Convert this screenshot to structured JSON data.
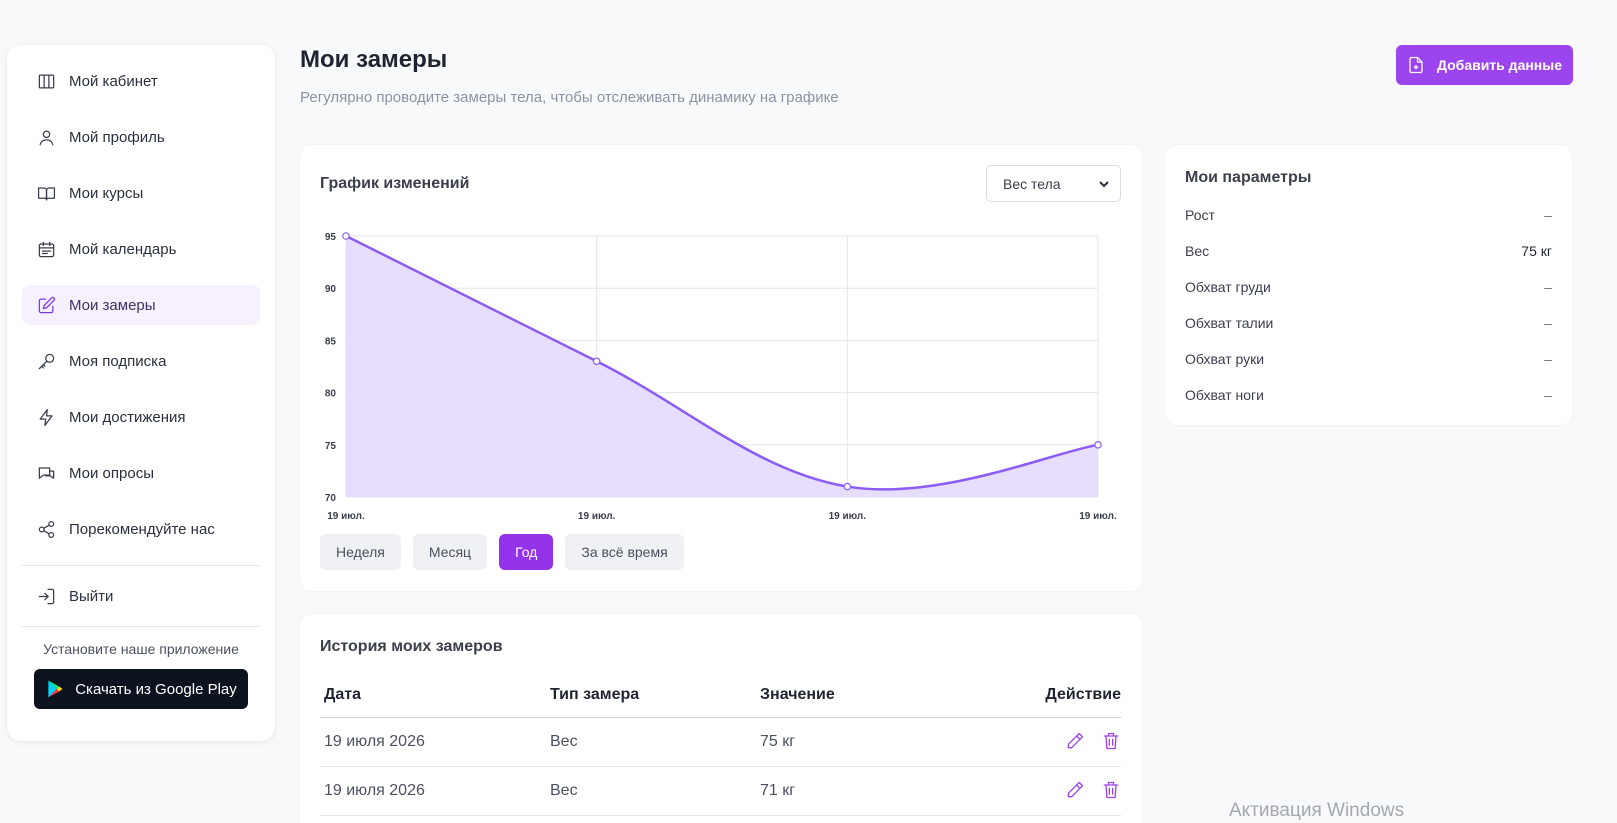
{
  "sidebar": {
    "items": [
      {
        "label": "Мой кабинет",
        "icon": "columns-icon"
      },
      {
        "label": "Мой профиль",
        "icon": "user-icon"
      },
      {
        "label": "Мои курсы",
        "icon": "book-icon"
      },
      {
        "label": "Мой календарь",
        "icon": "calendar-icon"
      },
      {
        "label": "Мои замеры",
        "icon": "pencil-square-icon",
        "active": true
      },
      {
        "label": "Моя подписка",
        "icon": "key-icon"
      },
      {
        "label": "Мои достижения",
        "icon": "bolt-icon"
      },
      {
        "label": "Мои опросы",
        "icon": "chat-icon"
      },
      {
        "label": "Порекомендуйте нас",
        "icon": "share-icon"
      }
    ],
    "logout_label": "Выйти",
    "install_text": "Установите наше приложение",
    "gplay_label": "Скачать из Google Play"
  },
  "header": {
    "title": "Мои замеры",
    "subtitle": "Регулярно проводите замеры тела, чтобы отслеживать динамику на графике",
    "add_button": "Добавить данные"
  },
  "chart_card": {
    "title": "График изменений",
    "select_value": "Вес тела",
    "periods": [
      "Неделя",
      "Месяц",
      "Год",
      "За всё время"
    ],
    "active_period": "Год"
  },
  "chart_data": {
    "type": "area",
    "x": [
      "19 июл.",
      "19 июл.",
      "19 июл.",
      "19 июл."
    ],
    "values": [
      95,
      83,
      71,
      75
    ],
    "yticks": [
      95,
      90,
      85,
      80,
      75,
      70
    ],
    "ylim": [
      70,
      95
    ],
    "grid": true,
    "line_color": "#8b5cf6",
    "fill_color": "#e6dcfd"
  },
  "params": {
    "title": "Мои параметры",
    "rows": [
      {
        "label": "Рост",
        "value": "–"
      },
      {
        "label": "Вес",
        "value": "75 кг"
      },
      {
        "label": "Обхват груди",
        "value": "–"
      },
      {
        "label": "Обхват талии",
        "value": "–"
      },
      {
        "label": "Обхват руки",
        "value": "–"
      },
      {
        "label": "Обхват ноги",
        "value": "–"
      }
    ]
  },
  "history": {
    "title": "История моих замеров",
    "columns": [
      "Дата",
      "Тип замера",
      "Значение",
      "Действие"
    ],
    "rows": [
      {
        "date": "19 июля 2026",
        "type": "Вес",
        "value": "75 кг"
      },
      {
        "date": "19 июля 2026",
        "type": "Вес",
        "value": "71 кг"
      }
    ]
  },
  "watermark": "Активация Windows",
  "colors": {
    "accent": "#9c45ee",
    "active_bg": "#f7f0fe"
  }
}
